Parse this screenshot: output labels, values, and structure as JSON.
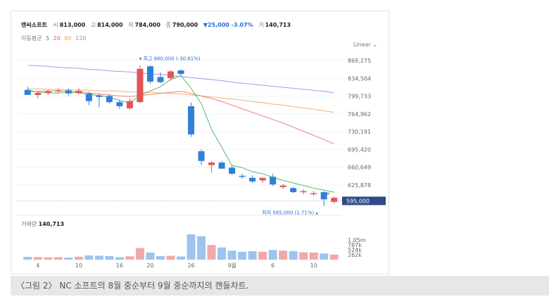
{
  "header": {
    "name": "엔씨소프트",
    "open_label": "시",
    "open": "813,000",
    "high_label": "고",
    "high": "814,000",
    "low_label": "저",
    "low": "784,000",
    "close_label": "종",
    "close": "790,000",
    "change": "▼25,000 -3.07%",
    "volume_label": "거",
    "volume": "140,713"
  },
  "moving_average": {
    "label": "이동평균",
    "periods": [
      "5",
      "20",
      "60",
      "120"
    ],
    "colors": [
      "#3aa655",
      "#e8534f",
      "#e9a14f",
      "#a57fd8"
    ]
  },
  "scale_label": "Linear",
  "volume_panel": {
    "title": "거래량",
    "value": "140,713"
  },
  "caption": "〈그림 2〉 NC 소프트의 8월 중순부터 9월 중순까지의 캔들차트.",
  "chart_data": {
    "type": "candlestick",
    "y_ticks": [
      869275,
      834504,
      799733,
      764962,
      730191,
      695420,
      660649,
      625878
    ],
    "y_tick_labels": [
      "869,275",
      "834,504",
      "799,733",
      "764,962",
      "730,191",
      "695,420",
      "660,649",
      "625,878"
    ],
    "x_labels": [
      "4",
      "10",
      "16",
      "20",
      "26",
      "9월",
      "6",
      "10"
    ],
    "x_label_index": [
      1,
      5,
      9,
      12,
      16,
      20,
      24,
      28
    ],
    "current_price": "595,000",
    "annotations": {
      "high": "최고 860,000 (-30.81%)",
      "low": "최저 585,000 (1.71%)"
    },
    "candles": [
      {
        "o": 812000,
        "h": 818000,
        "l": 802000,
        "c": 802000
      },
      {
        "o": 802000,
        "h": 808000,
        "l": 795000,
        "c": 806000
      },
      {
        "o": 806000,
        "h": 812000,
        "l": 802000,
        "c": 809000
      },
      {
        "o": 809000,
        "h": 815000,
        "l": 804000,
        "c": 811000
      },
      {
        "o": 811000,
        "h": 815000,
        "l": 800000,
        "c": 805000
      },
      {
        "o": 806000,
        "h": 815000,
        "l": 803000,
        "c": 810000
      },
      {
        "o": 805000,
        "h": 808000,
        "l": 782000,
        "c": 790000
      },
      {
        "o": 801000,
        "h": 805000,
        "l": 778000,
        "c": 798000
      },
      {
        "o": 800000,
        "h": 803000,
        "l": 785000,
        "c": 788000
      },
      {
        "o": 788000,
        "h": 792000,
        "l": 775000,
        "c": 780000
      },
      {
        "o": 776000,
        "h": 795000,
        "l": 773000,
        "c": 790000
      },
      {
        "o": 788000,
        "h": 860000,
        "l": 786000,
        "c": 853000
      },
      {
        "o": 858000,
        "h": 860000,
        "l": 824000,
        "c": 828000
      },
      {
        "o": 837000,
        "h": 846000,
        "l": 825000,
        "c": 827000
      },
      {
        "o": 835000,
        "h": 850000,
        "l": 830000,
        "c": 848000
      },
      {
        "o": 850000,
        "h": 852000,
        "l": 840000,
        "c": 843000
      },
      {
        "o": 780000,
        "h": 787000,
        "l": 720000,
        "c": 725000
      },
      {
        "o": 692000,
        "h": 696000,
        "l": 665000,
        "c": 673000
      },
      {
        "o": 665000,
        "h": 672000,
        "l": 650000,
        "c": 670000
      },
      {
        "o": 670000,
        "h": 673000,
        "l": 657000,
        "c": 658000
      },
      {
        "o": 660000,
        "h": 664000,
        "l": 646000,
        "c": 648000
      },
      {
        "o": 644000,
        "h": 648000,
        "l": 638000,
        "c": 642000
      },
      {
        "o": 640000,
        "h": 645000,
        "l": 630000,
        "c": 633000
      },
      {
        "o": 635000,
        "h": 640000,
        "l": 630000,
        "c": 640000
      },
      {
        "o": 642000,
        "h": 648000,
        "l": 624000,
        "c": 627000
      },
      {
        "o": 622000,
        "h": 628000,
        "l": 618000,
        "c": 625000
      },
      {
        "o": 620000,
        "h": 622000,
        "l": 610000,
        "c": 612000
      },
      {
        "o": 612000,
        "h": 618000,
        "l": 608000,
        "c": 614000
      },
      {
        "o": 610000,
        "h": 614000,
        "l": 605000,
        "c": 610000
      },
      {
        "o": 612000,
        "h": 614000,
        "l": 585000,
        "c": 598000
      },
      {
        "o": 593000,
        "h": 604000,
        "l": 590000,
        "c": 601000
      }
    ],
    "ma5": [
      811000,
      808000,
      806000,
      806000,
      807000,
      806000,
      803000,
      801000,
      798000,
      791000,
      787000,
      801000,
      810000,
      818000,
      832000,
      840000,
      815000,
      785000,
      735000,
      700000,
      664000,
      660000,
      652000,
      648000,
      641000,
      635000,
      630000,
      625000,
      620000,
      616000,
      612000
    ],
    "ma20": [
      808000,
      809000,
      810000,
      810000,
      809000,
      808000,
      806000,
      804000,
      802000,
      800000,
      799000,
      801000,
      803000,
      805000,
      807000,
      809000,
      805000,
      800000,
      795000,
      789000,
      782000,
      775000,
      768000,
      761000,
      754000,
      747000,
      739000,
      731000,
      723000,
      715000,
      706000
    ],
    "ma60": [
      814000,
      814000,
      813000,
      813000,
      812000,
      812000,
      811000,
      810000,
      810000,
      809000,
      808000,
      808000,
      807000,
      806000,
      805000,
      804000,
      802000,
      800000,
      798000,
      796000,
      794000,
      792000,
      789000,
      787000,
      784000,
      782000,
      779000,
      777000,
      774000,
      771000,
      768000
    ],
    "ma120": [
      860000,
      859000,
      858000,
      856000,
      855000,
      854000,
      852000,
      851000,
      849000,
      848000,
      847000,
      845000,
      843000,
      842000,
      840000,
      838000,
      836000,
      834000,
      832000,
      830000,
      827000,
      825000,
      823000,
      821000,
      819000,
      817000,
      815000,
      813000,
      811000,
      809000,
      806000
    ],
    "volume": {
      "y_tick_labels": [
        "1.05m",
        "787k",
        "524k",
        "262k"
      ],
      "y_ticks": [
        1050000,
        787000,
        524000,
        262000
      ],
      "values": [
        150000,
        140000,
        120000,
        130000,
        110000,
        160000,
        230000,
        210000,
        190000,
        130000,
        180000,
        620000,
        380000,
        190000,
        210000,
        170000,
        1350000,
        1250000,
        780000,
        650000,
        480000,
        420000,
        450000,
        420000,
        520000,
        480000,
        450000,
        390000,
        380000,
        330000,
        270000
      ]
    },
    "colors": {
      "up": "#e35555",
      "down": "#2f80d8",
      "vol_up": "#f2a8a8",
      "vol_down": "#9cc4ef",
      "price_tag": "#2e4a87"
    }
  }
}
